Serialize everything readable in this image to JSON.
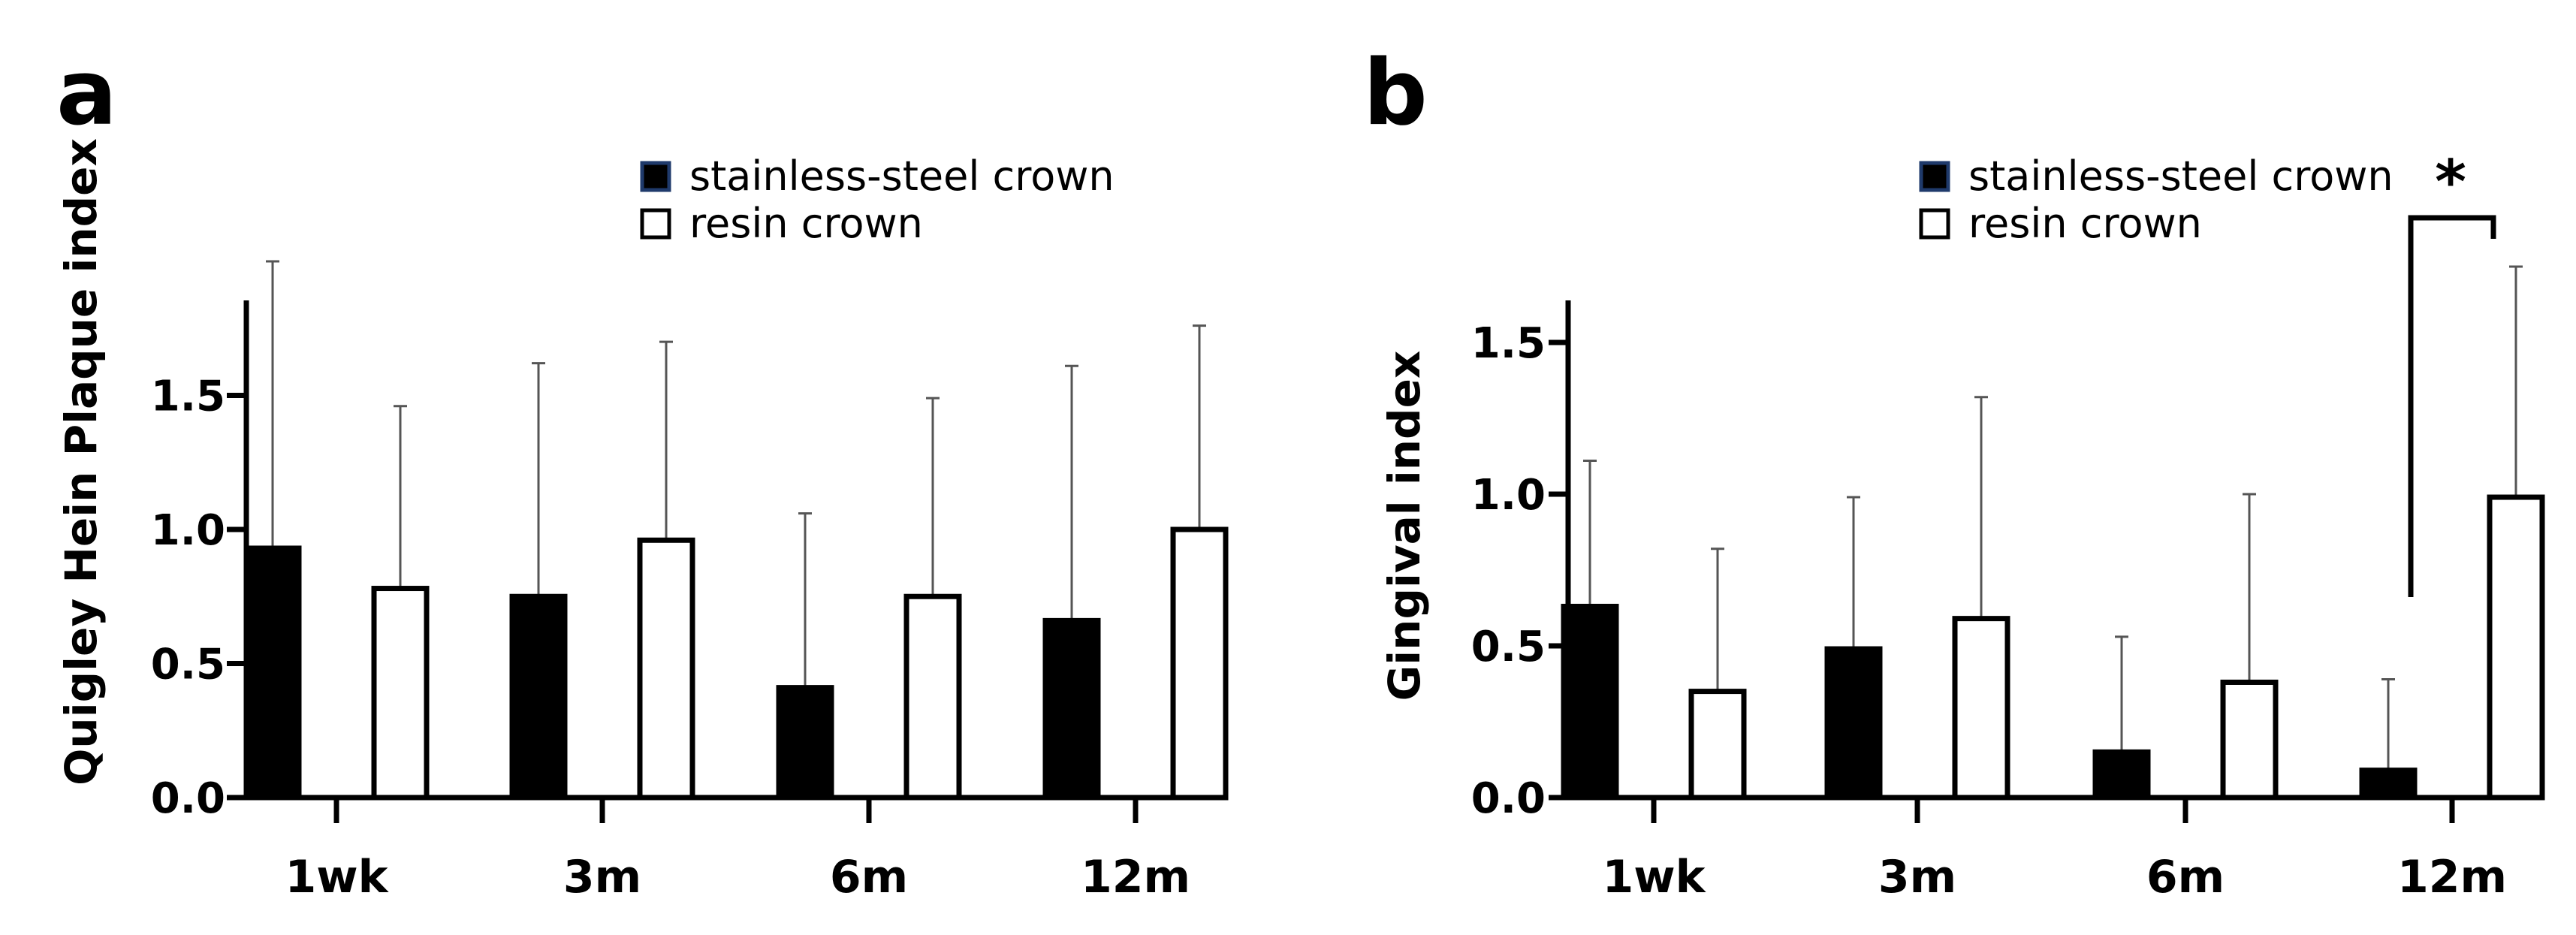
{
  "chart_data": [
    {
      "panel": "a",
      "type": "bar",
      "title": "",
      "xlabel": "",
      "ylabel": "Quigley Hein Plaque index",
      "ylim": [
        0,
        1.85
      ],
      "yticks": [
        0.0,
        0.5,
        1.0,
        1.5
      ],
      "ytick_labels": [
        "0.0",
        "0.5",
        "1.0",
        "1.5"
      ],
      "categories": [
        "1wk",
        "3m",
        "6m",
        "12m"
      ],
      "series": [
        {
          "name": "stainless-steel crown",
          "values": [
            0.93,
            0.75,
            0.41,
            0.66
          ],
          "errors": [
            1.07,
            0.87,
            0.65,
            0.95
          ]
        },
        {
          "name": "resin crown",
          "values": [
            0.78,
            0.96,
            0.75,
            1.0
          ],
          "errors": [
            0.68,
            0.74,
            0.74,
            0.76
          ]
        }
      ],
      "legend": {
        "position": "top-center",
        "entries": [
          "stainless-steel crown",
          "resin crown"
        ]
      },
      "significance": []
    },
    {
      "panel": "b",
      "type": "bar",
      "title": "",
      "xlabel": "",
      "ylabel": "Gingival index",
      "ylim": [
        0,
        1.65
      ],
      "yticks": [
        0.0,
        0.5,
        1.0,
        1.5
      ],
      "ytick_labels": [
        "0.0",
        "0.5",
        "1.0",
        "1.5"
      ],
      "categories": [
        "1wk",
        "3m",
        "6m",
        "12m"
      ],
      "series": [
        {
          "name": "stainless-steel crown",
          "values": [
            0.63,
            0.49,
            0.15,
            0.09
          ],
          "errors": [
            0.48,
            0.5,
            0.38,
            0.3
          ]
        },
        {
          "name": "resin crown",
          "values": [
            0.35,
            0.59,
            0.38,
            0.99
          ],
          "errors": [
            0.47,
            0.73,
            0.62,
            0.76
          ]
        }
      ],
      "legend": {
        "position": "top-right",
        "entries": [
          "stainless-steel crown",
          "resin crown"
        ]
      },
      "significance": [
        {
          "category": "12m",
          "marker": "*"
        }
      ]
    }
  ]
}
